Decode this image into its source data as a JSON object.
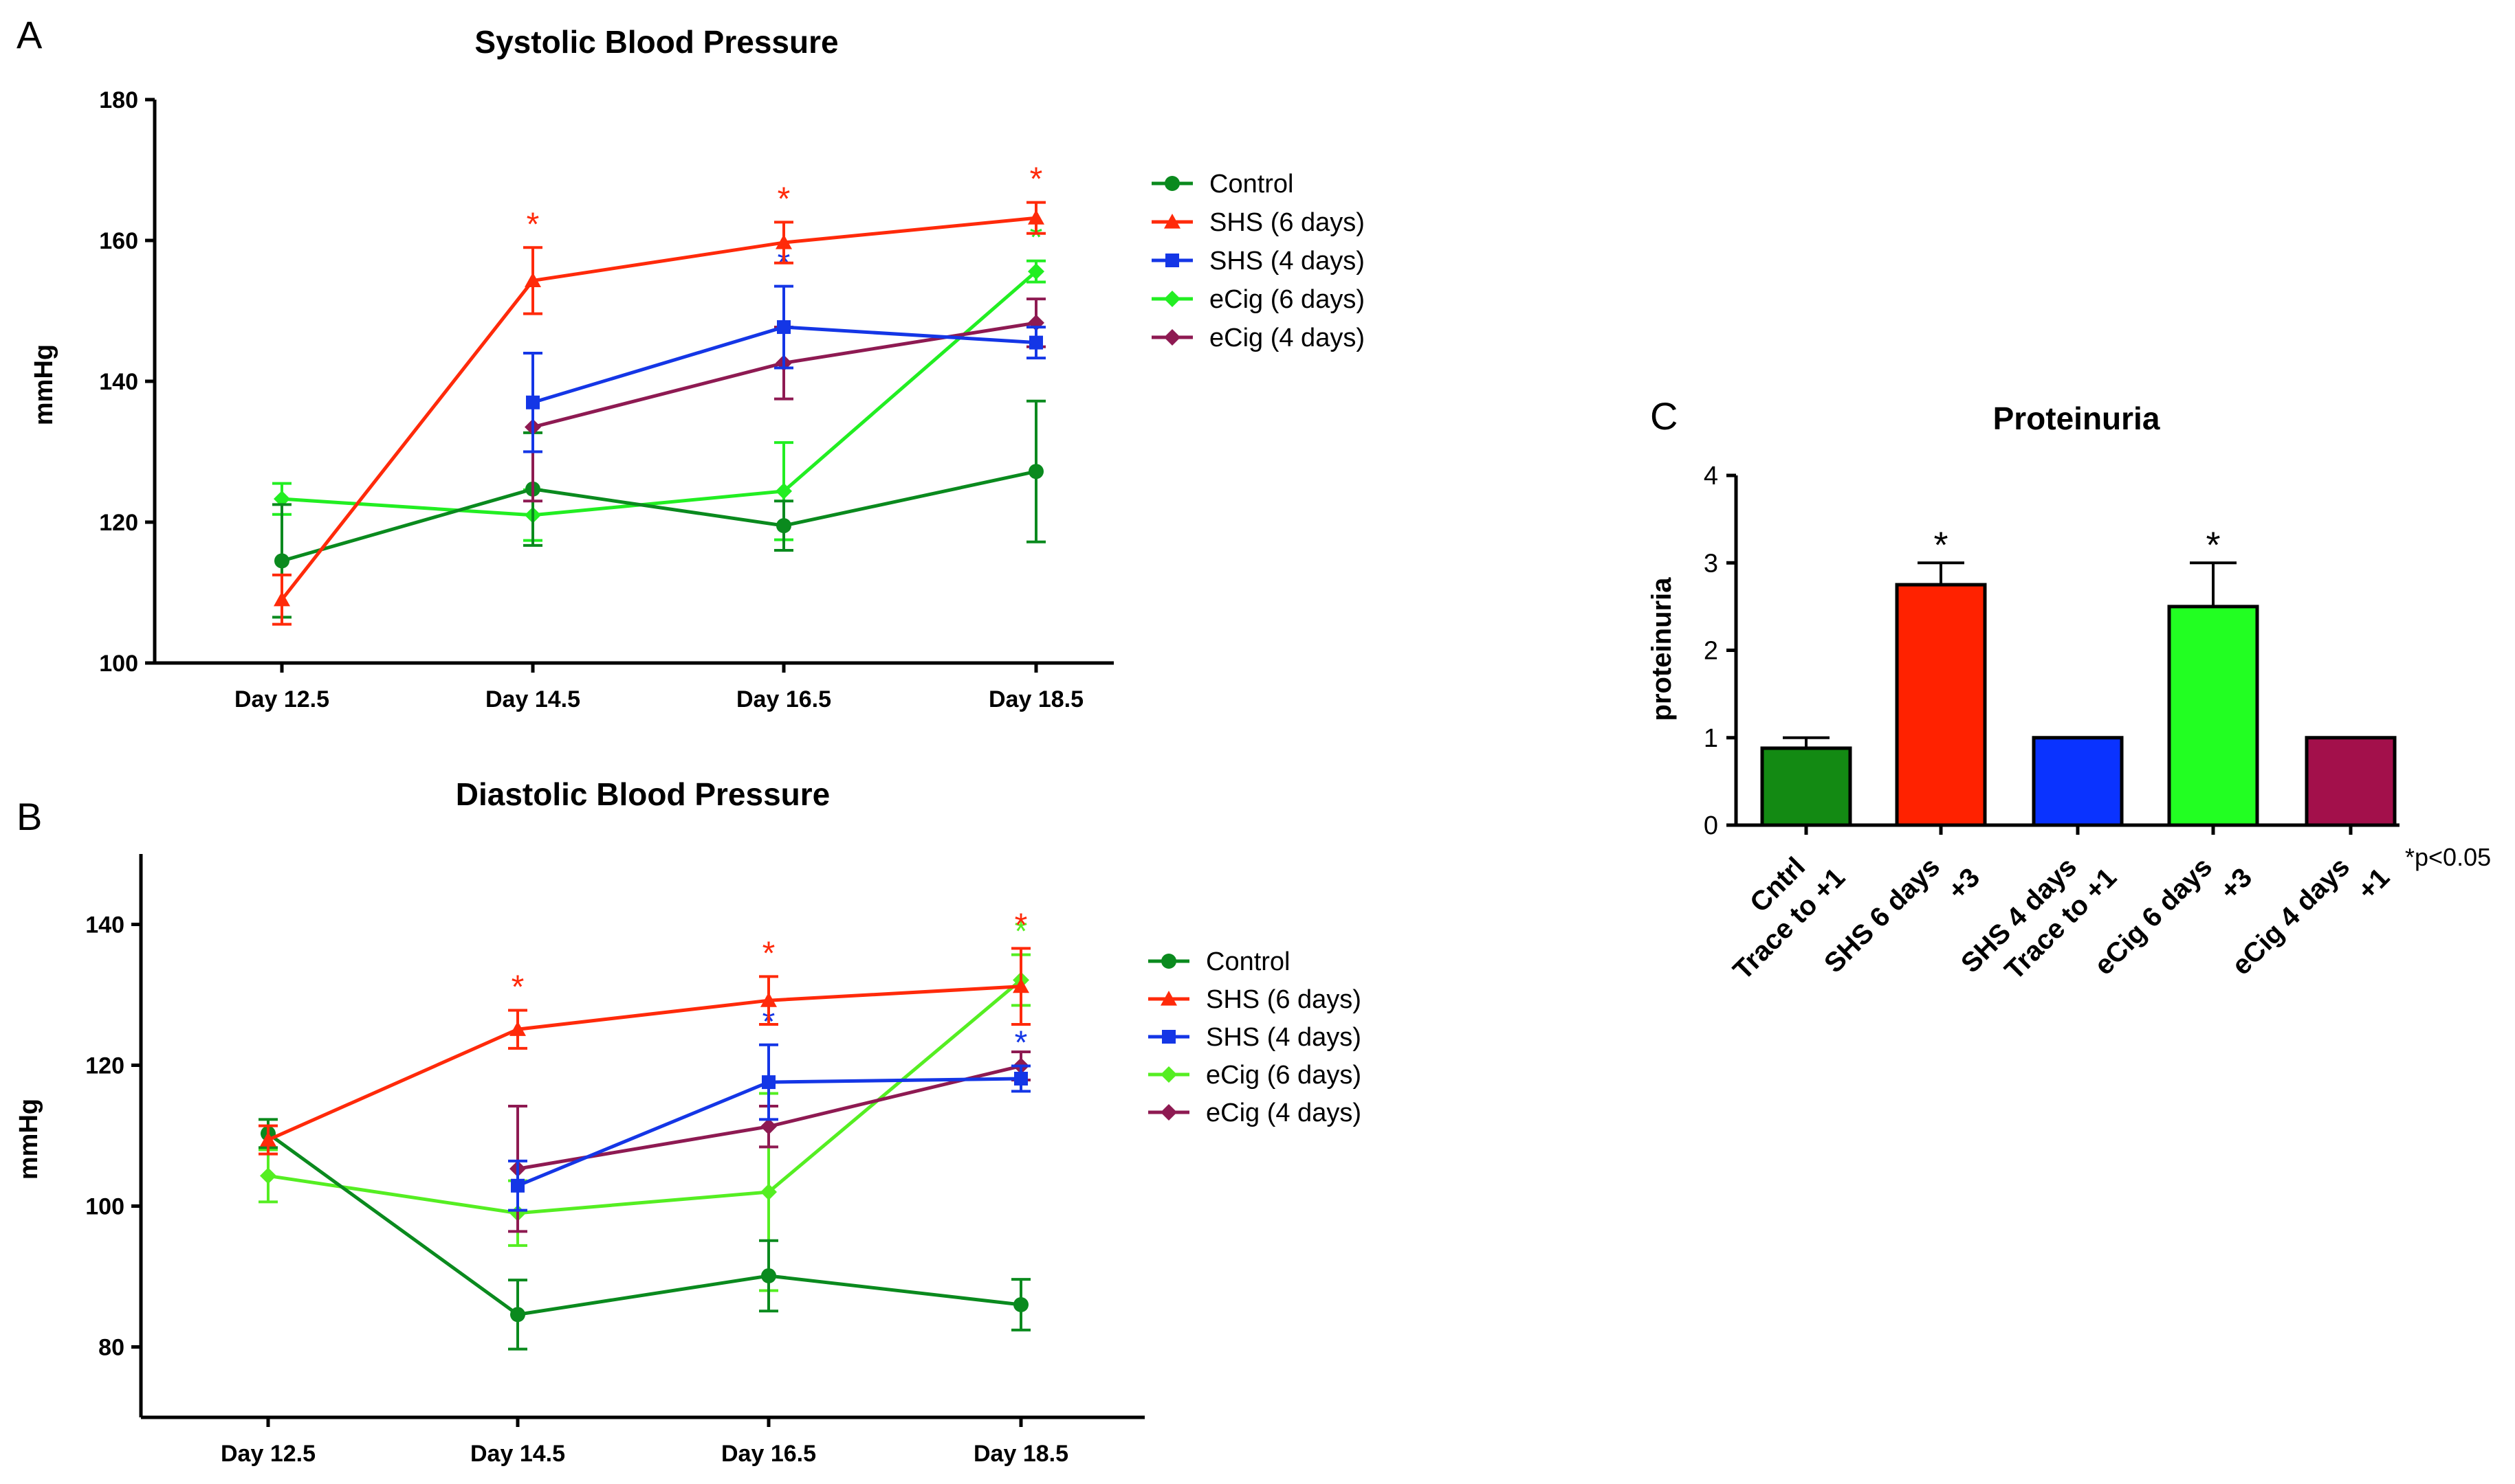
{
  "chart_data": [
    {
      "panel": "A",
      "type": "line",
      "title": "Systolic Blood Pressure",
      "xlabel": "",
      "ylabel": "mmHg",
      "categories": [
        "Day 12.5",
        "Day 14.5",
        "Day 16.5",
        "Day 18.5"
      ],
      "ylim": [
        100,
        180
      ],
      "yticks": [
        100,
        120,
        140,
        160,
        180
      ],
      "series": [
        {
          "name": "Control",
          "color": "#0a8a1e",
          "marker": "circle",
          "values": [
            114.5,
            124.7,
            119.5,
            127.2
          ],
          "errors": [
            8,
            8,
            3.5,
            10
          ],
          "stars": [
            false,
            false,
            false,
            false
          ]
        },
        {
          "name": "SHS (6 days)",
          "color": "#ff2a0a",
          "marker": "triangle",
          "values": [
            109,
            154.3,
            159.7,
            163.2
          ],
          "errors": [
            3.5,
            4.7,
            2.9,
            2.2
          ],
          "stars": [
            false,
            true,
            true,
            true
          ]
        },
        {
          "name": "SHS (4 days)",
          "color": "#1436e6",
          "marker": "square",
          "values": [
            null,
            137,
            147.7,
            145.5
          ],
          "errors": [
            null,
            7,
            5.8,
            2.2
          ],
          "stars": [
            false,
            false,
            true,
            false
          ]
        },
        {
          "name": "eCig (6 days)",
          "color": "#22ee22",
          "marker": "diamond",
          "values": [
            123.3,
            121,
            124.4,
            155.6
          ],
          "errors": [
            2.2,
            3.6,
            6.9,
            1.5
          ],
          "stars": [
            false,
            false,
            false,
            true
          ]
        },
        {
          "name": "eCig (4 days)",
          "color": "#8e1a52",
          "marker": "diamond",
          "values": [
            null,
            133.5,
            142.6,
            148.3
          ],
          "errors": [
            null,
            10.5,
            5.1,
            3.4
          ],
          "stars": [
            false,
            false,
            false,
            false
          ]
        }
      ]
    },
    {
      "panel": "B",
      "type": "line",
      "title": "Diastolic Blood Pressure",
      "xlabel": "",
      "ylabel": "mmHg",
      "categories": [
        "Day 12.5",
        "Day 14.5",
        "Day 16.5",
        "Day 18.5"
      ],
      "ylim": [
        70,
        150
      ],
      "yticks": [
        80,
        100,
        120,
        140
      ],
      "series": [
        {
          "name": "Control",
          "color": "#0a8a1e",
          "marker": "circle",
          "values": [
            110.3,
            84.6,
            90.1,
            86
          ],
          "errors": [
            2,
            4.9,
            5,
            3.6
          ],
          "stars": [
            false,
            false,
            false,
            false
          ]
        },
        {
          "name": "SHS (6 days)",
          "color": "#ff2a0a",
          "marker": "triangle",
          "values": [
            109.4,
            125.1,
            129.2,
            131.2
          ],
          "errors": [
            2,
            2.7,
            3.4,
            5.4
          ],
          "stars": [
            false,
            true,
            true,
            true
          ]
        },
        {
          "name": "SHS (4 days)",
          "color": "#1436e6",
          "marker": "square",
          "values": [
            null,
            102.9,
            117.6,
            118.1
          ],
          "errors": [
            null,
            3.5,
            5.3,
            1.8
          ],
          "stars": [
            false,
            false,
            true,
            true
          ]
        },
        {
          "name": "eCig (6 days)",
          "color": "#55ee22",
          "marker": "diamond",
          "values": [
            104.3,
            99,
            102,
            132.1
          ],
          "errors": [
            3.7,
            4.6,
            14,
            3.6
          ],
          "stars": [
            false,
            false,
            false,
            true
          ]
        },
        {
          "name": "eCig (4 days)",
          "color": "#8e1a52",
          "marker": "diamond",
          "values": [
            null,
            105.3,
            111.3,
            119.9
          ],
          "errors": [
            null,
            8.9,
            2.9,
            2
          ],
          "stars": [
            false,
            false,
            false,
            false
          ]
        }
      ]
    },
    {
      "panel": "C",
      "type": "bar",
      "title": "Proteinuria",
      "xlabel": "",
      "ylabel": "proteinuria",
      "ylim": [
        0,
        4
      ],
      "yticks": [
        0,
        1,
        2,
        3,
        4
      ],
      "categories": [
        {
          "line1": "Cntrl",
          "line2": "Trace to +1"
        },
        {
          "line1": "SHS 6 days",
          "line2": "+3"
        },
        {
          "line1": "SHS 4 days",
          "line2": "Trace to +1"
        },
        {
          "line1": "eCig 6 days",
          "line2": "+3"
        },
        {
          "line1": "eCig 4 days",
          "line2": "+1"
        }
      ],
      "values": [
        0.88,
        2.75,
        1,
        2.5,
        1
      ],
      "errors": [
        0.12,
        0.25,
        0,
        0.5,
        0
      ],
      "colors": [
        "#138a13",
        "#ff2200",
        "#0a33ff",
        "#22ff22",
        "#a3104b"
      ],
      "stars": [
        false,
        true,
        false,
        true,
        false
      ],
      "note": "*p<0.05"
    }
  ],
  "panel_labels": {
    "a": "A",
    "b": "B",
    "c": "C"
  },
  "star_symbol": "*"
}
